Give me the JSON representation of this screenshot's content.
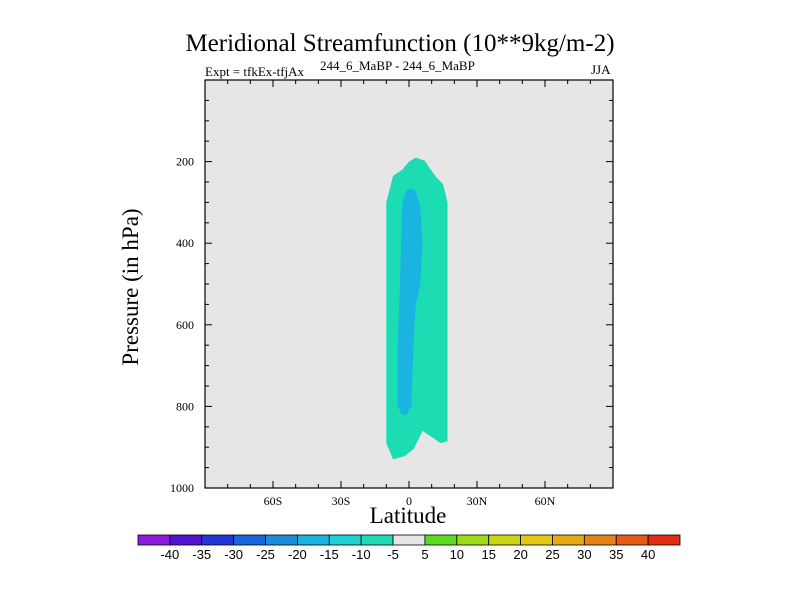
{
  "chart_data": {
    "type": "contour",
    "title": "Meridional Streamfunction (10**9kg/m-2)",
    "subtitle": "244_6_MaBP - 244_6_MaBP",
    "left_label": "Expt = tfkEx-tfjAx",
    "right_label": "JJA",
    "xlabel": "Latitude",
    "ylabel": "Pressure (in hPa)",
    "xlim": [
      -90,
      90
    ],
    "ylim": [
      1000,
      0
    ],
    "x_ticks": [
      {
        "value": -60,
        "label": "60S"
      },
      {
        "value": -30,
        "label": "30S"
      },
      {
        "value": 0,
        "label": "0"
      },
      {
        "value": 30,
        "label": "30N"
      },
      {
        "value": 60,
        "label": "60N"
      }
    ],
    "y_ticks": [
      {
        "value": 200,
        "label": "200"
      },
      {
        "value": 400,
        "label": "400"
      },
      {
        "value": 600,
        "label": "600"
      },
      {
        "value": 800,
        "label": "800"
      },
      {
        "value": 1000,
        "label": "1000"
      }
    ],
    "contour_levels": [
      -40,
      -35,
      -30,
      -25,
      -20,
      -15,
      -10,
      -5,
      5,
      10,
      15,
      20,
      25,
      30,
      35,
      40
    ],
    "colorbar_colors": [
      "#8c1adf",
      "#5014d2",
      "#2337d8",
      "#1a64dc",
      "#1a8cdc",
      "#1ab4e1",
      "#1cd2d2",
      "#1cdcb4",
      "#e6e6e6",
      "#5adc1e",
      "#9bdc14",
      "#c8d714",
      "#e6c814",
      "#e6aa14",
      "#e68214",
      "#e65a14",
      "#e12d14"
    ],
    "background_color": "#e6e6e6",
    "filled_regions": [
      {
        "level": "-10 to -5",
        "color": "#1cdcb4",
        "polygon": [
          [
            -7,
            930
          ],
          [
            -10,
            890
          ],
          [
            -10,
            700
          ],
          [
            -10,
            500
          ],
          [
            -10,
            300
          ],
          [
            -7,
            235
          ],
          [
            -3,
            220
          ],
          [
            0,
            200
          ],
          [
            3,
            190
          ],
          [
            7,
            198
          ],
          [
            9,
            215
          ],
          [
            12,
            238
          ],
          [
            15,
            255
          ],
          [
            17,
            300
          ],
          [
            17,
            500
          ],
          [
            17,
            700
          ],
          [
            17,
            885
          ],
          [
            14,
            890
          ],
          [
            10,
            875
          ],
          [
            6,
            860
          ],
          [
            2,
            905
          ],
          [
            -2,
            922
          ]
        ]
      },
      {
        "level": "-15 to -10",
        "color": "#1ab4e1",
        "polygon": [
          [
            -3,
            820
          ],
          [
            -5,
            800
          ],
          [
            -5,
            650
          ],
          [
            -4,
            500
          ],
          [
            -3,
            300
          ],
          [
            -1,
            270
          ],
          [
            1,
            265
          ],
          [
            3,
            272
          ],
          [
            5,
            310
          ],
          [
            6,
            400
          ],
          [
            5,
            500
          ],
          [
            3,
            550
          ],
          [
            2,
            650
          ],
          [
            1,
            800
          ],
          [
            -1,
            820
          ]
        ]
      }
    ]
  }
}
